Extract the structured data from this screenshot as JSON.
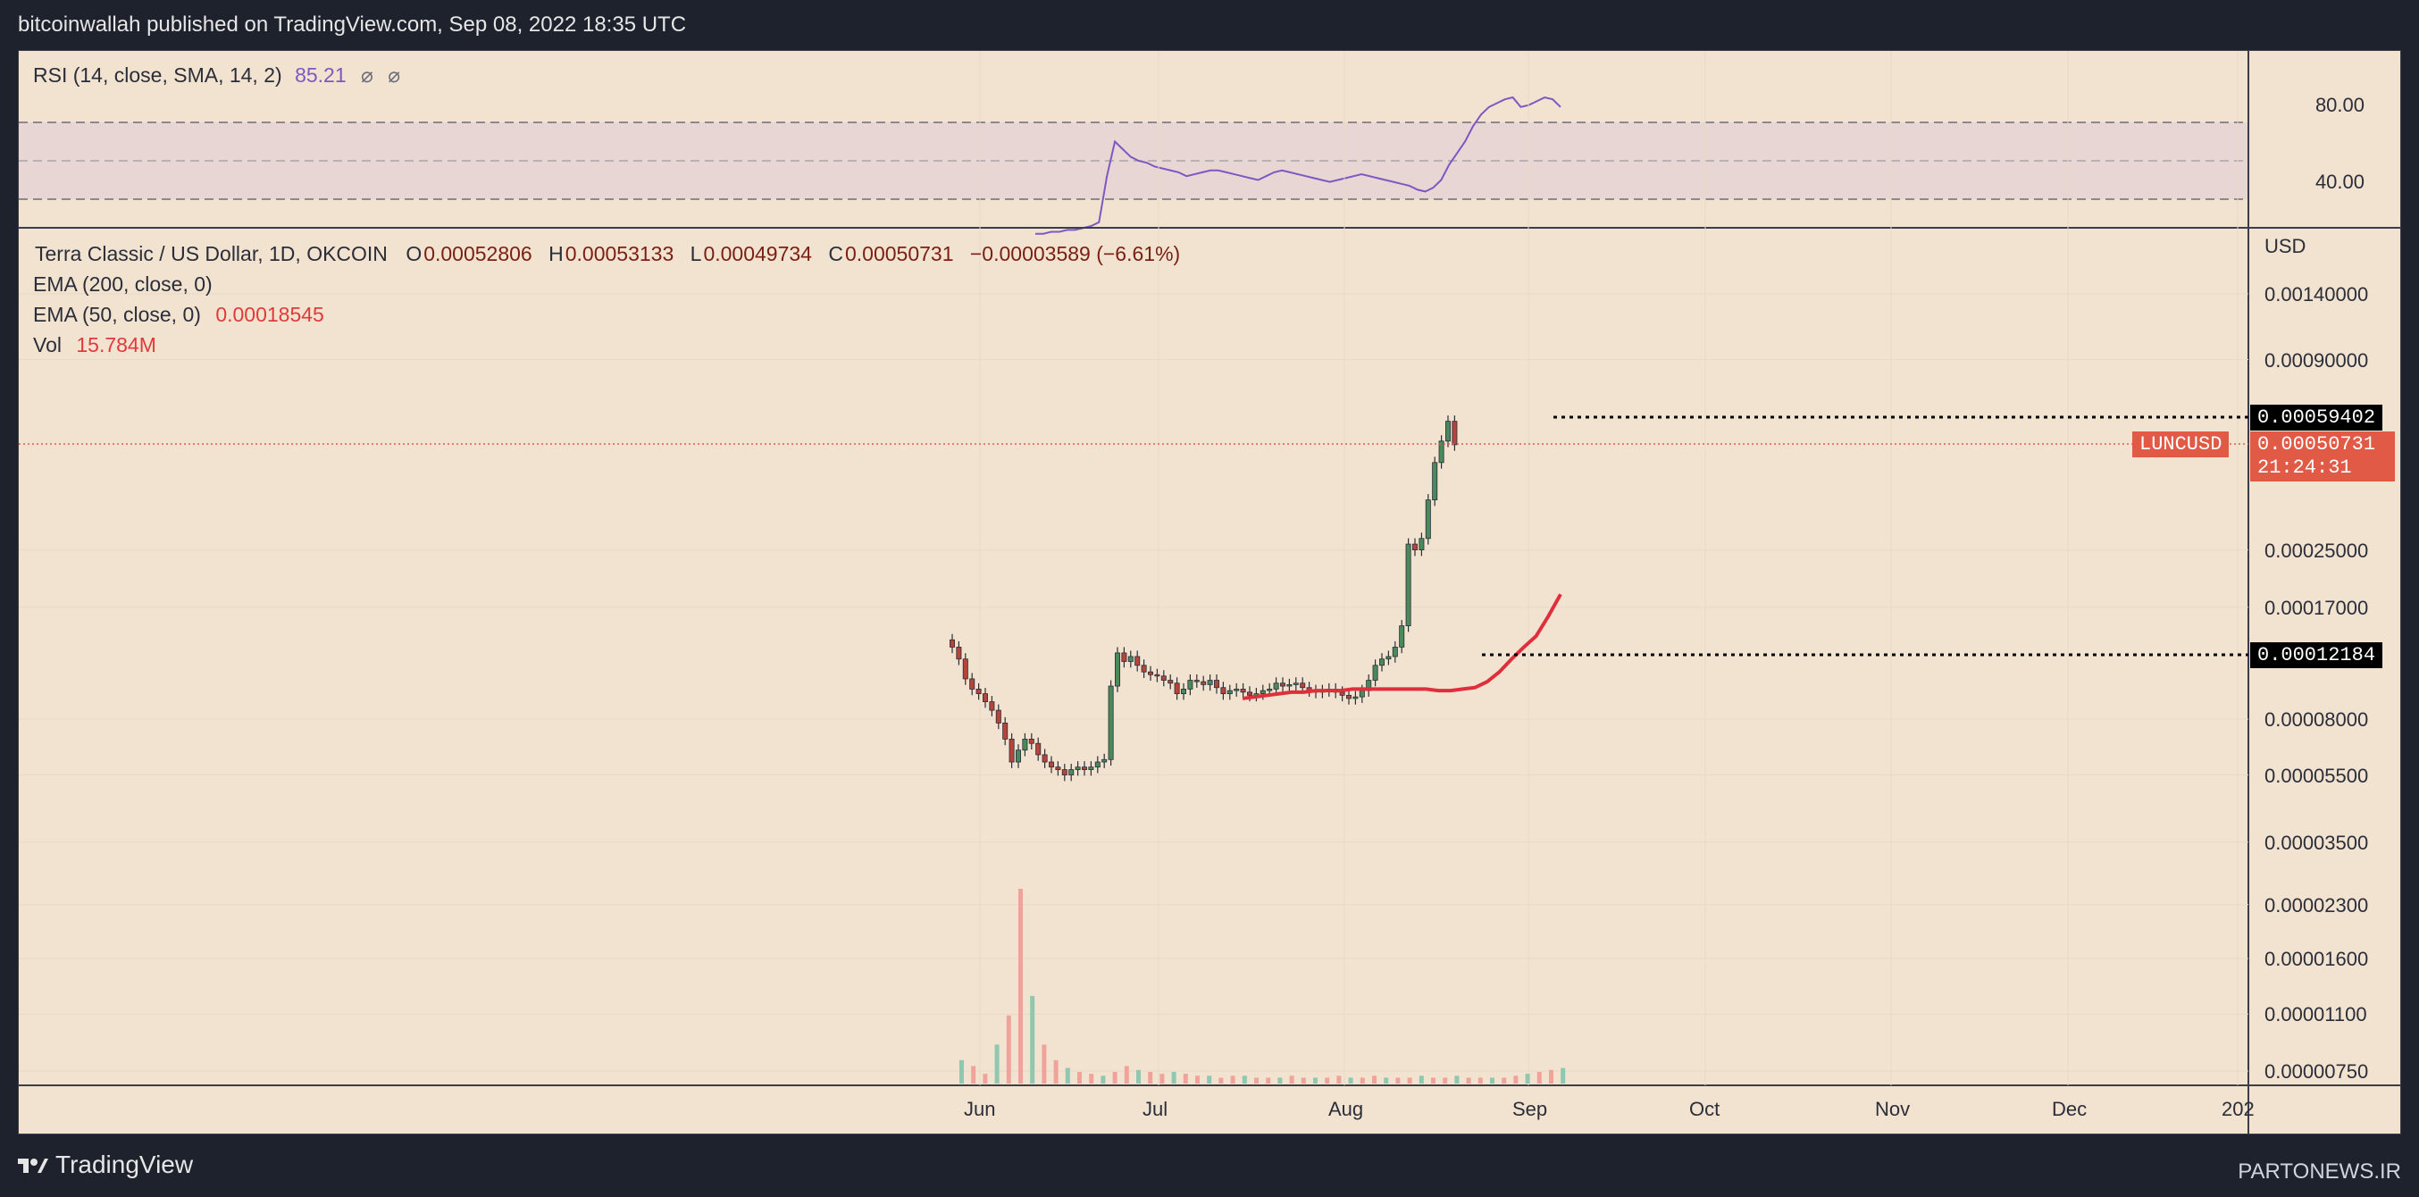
{
  "header": {
    "published": "bitcoinwallah published on TradingView.com, Sep 08, 2022 18:35 UTC"
  },
  "rsi_panel": {
    "label": "RSI (14, close, SMA, 14, 2)",
    "value": "85.21",
    "hidden_symbols": [
      "⌀",
      "⌀"
    ],
    "levels": [
      "80.00",
      "40.00"
    ]
  },
  "main_panel": {
    "symbol_line": "Terra Classic / US Dollar, 1D, OKCOIN",
    "ohlc": {
      "o_label": "O",
      "o": "0.00052806",
      "h_label": "H",
      "h": "0.00053133",
      "l_label": "L",
      "l": "0.00049734",
      "c_label": "C",
      "c": "0.00050731",
      "change": "−0.00003589 (−6.61%)"
    },
    "ema200": {
      "label": "EMA (200, close, 0)"
    },
    "ema50": {
      "label": "EMA (50, close, 0)",
      "value": "0.00018545"
    },
    "vol": {
      "label": "Vol",
      "value": "15.784M"
    }
  },
  "y_axis": {
    "unit": "USD",
    "ticks": [
      "0.00140000",
      "0.00090000",
      "0.00025000",
      "0.00017000",
      "0.00008000",
      "0.00005500",
      "0.00003500",
      "0.00002300",
      "0.00001600",
      "0.00001100",
      "0.00000750"
    ]
  },
  "price_tags": {
    "high_line": "0.00059402",
    "symbol_tag": "LUNCUSD",
    "last_price": "0.00050731",
    "countdown": "21:24:31",
    "low_line": "0.00012184"
  },
  "x_axis": {
    "ticks": [
      "Jun",
      "Jul",
      "Aug",
      "Sep",
      "Oct",
      "Nov",
      "Dec",
      "202"
    ]
  },
  "footer": {
    "brand": "TradingView",
    "watermark": "PARTONEWS.IR"
  },
  "colors": {
    "background": "#f2e2d0",
    "up_candle": "#4a8a5a",
    "down_candle": "#b5443a",
    "ema50": "#e02f3c",
    "rsi_line": "#7e57c2",
    "rsi_band": "#e5d3d3",
    "vol_up": "#8fc7b0",
    "vol_down": "#f0a39a"
  },
  "chart_data": {
    "type": "candlestick",
    "symbol": "LUNCUSD",
    "timeframe": "1D",
    "x_ticks": [
      "Jun",
      "Jul",
      "Aug",
      "Sep",
      "Oct",
      "Nov",
      "Dec",
      "202"
    ],
    "y_scale": "log",
    "last_close": 0.00050731,
    "marked_high": 0.00059402,
    "marked_level": 0.00012184,
    "closes": [
      0.00013,
      0.00012,
      0.000105,
      9.8e-05,
      9.5e-05,
      9e-05,
      8.5e-05,
      7.8e-05,
      7e-05,
      6e-05,
      6.5e-05,
      7e-05,
      6.8e-05,
      6.3e-05,
      6e-05,
      5.8e-05,
      5.7e-05,
      5.5e-05,
      5.7e-05,
      5.8e-05,
      5.7e-05,
      5.8e-05,
      6e-05,
      6.1e-05,
      0.0001,
      0.000125,
      0.000118,
      0.000122,
      0.000115,
      0.00011,
      0.000108,
      0.000107,
      0.000104,
      0.000102,
      9.5e-05,
      9.8e-05,
      0.000104,
      0.000103,
      0.000101,
      0.000104,
      9.9e-05,
      9.5e-05,
      9.7e-05,
      9.8e-05,
      9.6e-05,
      9.4e-05,
      9.5e-05,
      9.7e-05,
      9.8e-05,
      0.000102,
      0.0001,
      0.000101,
      0.000102,
      9.9e-05,
      9.7e-05,
      9.6e-05,
      9.7e-05,
      9.8e-05,
      9.6e-05,
      9.4e-05,
      9.2e-05,
      9.3e-05,
      9.7e-05,
      0.000104,
      0.000115,
      0.00012,
      0.000122,
      0.00013,
      0.00015,
      0.00026,
      0.00025,
      0.00027,
      0.00035,
      0.00045,
      0.00052,
      0.00059402,
      0.00050731
    ],
    "ema50": [
      9.2e-05,
      9.3e-05,
      9.4e-05,
      9.5e-05,
      9.6e-05,
      9.6e-05,
      9.7e-05,
      9.7e-05,
      9.7e-05,
      9.8e-05,
      9.8e-05,
      9.8e-05,
      9.8e-05,
      9.8e-05,
      9.8e-05,
      9.8e-05,
      9.7e-05,
      9.7e-05,
      9.8e-05,
      9.9e-05,
      0.000103,
      0.00011,
      0.00012,
      0.00013,
      0.00014,
      0.00016,
      0.00018545
    ],
    "volume_relative": [
      0.12,
      0.09,
      0.05,
      0.2,
      0.35,
      1.0,
      0.45,
      0.2,
      0.12,
      0.08,
      0.06,
      0.05,
      0.04,
      0.06,
      0.09,
      0.07,
      0.06,
      0.05,
      0.06,
      0.05,
      0.04,
      0.04,
      0.03,
      0.04,
      0.04,
      0.03,
      0.03,
      0.03,
      0.04,
      0.03,
      0.03,
      0.03,
      0.04,
      0.03,
      0.03,
      0.04,
      0.03,
      0.03,
      0.03,
      0.04,
      0.03,
      0.03,
      0.04,
      0.03,
      0.03,
      0.03,
      0.03,
      0.04,
      0.05,
      0.06,
      0.07,
      0.08
    ],
    "rsi": [
      22,
      22,
      23,
      23,
      24,
      24,
      25,
      26,
      28,
      52,
      70,
      66,
      62,
      60,
      59,
      57,
      56,
      55,
      54,
      52,
      53,
      54,
      55,
      55,
      54,
      53,
      52,
      51,
      50,
      52,
      54,
      55,
      54,
      53,
      52,
      51,
      50,
      49,
      50,
      51,
      52,
      53,
      52,
      51,
      50,
      49,
      48,
      47,
      45,
      44,
      46,
      50,
      58,
      64,
      70,
      78,
      84,
      88,
      90,
      92,
      93,
      88,
      89,
      91,
      93,
      92,
      88
    ]
  }
}
